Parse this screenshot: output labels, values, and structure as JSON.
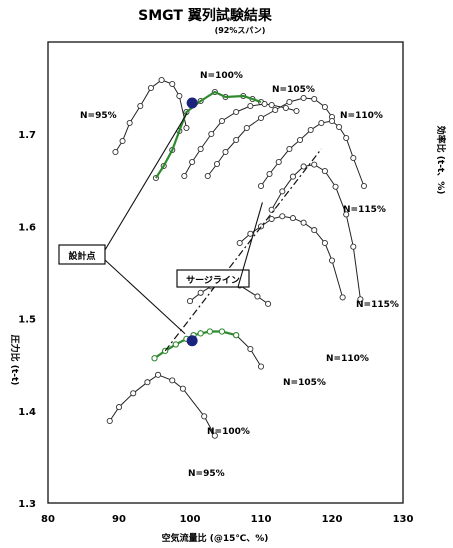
{
  "chart_data": {
    "type": "line",
    "title": "SMGT 翼列試験結果",
    "subtitle": "(92%スパン)",
    "xlabel": "空気流量比 (@15℃、%)",
    "ylabel": "圧力比 (t-t)",
    "y2label": "効率比 (t-t、%)",
    "xlim": [
      80,
      130
    ],
    "ylim": [
      1.3,
      1.8
    ],
    "xticks": [
      80,
      90,
      100,
      110,
      120,
      130
    ],
    "yticks": [
      1.3,
      1.4,
      1.5,
      1.6,
      1.7
    ],
    "xtick_labels": [
      "80",
      "90",
      "100",
      "110",
      "120",
      "130"
    ],
    "ytick_labels": [
      "1.3",
      "1.4",
      "1.5",
      "1.6",
      "1.7"
    ],
    "colors": {
      "curves": "#222222",
      "design_line": "#2d8a2d",
      "design_point": "#1a237e"
    },
    "pressure_series": [
      {
        "name": "N=95%",
        "x": [
          88.7,
          90.0,
          92.0,
          94.0,
          95.5,
          97.5,
          99.0,
          102.0,
          103.5
        ],
        "y": [
          1.389,
          1.404,
          1.419,
          1.431,
          1.439,
          1.433,
          1.424,
          1.394,
          1.373
        ]
      },
      {
        "name": "N=100%",
        "x": [
          95.0,
          96.5,
          98.0,
          99.5,
          100.5,
          101.5,
          102.8,
          104.5,
          106.5,
          108.5,
          110.0
        ],
        "y": [
          1.457,
          1.465,
          1.472,
          1.478,
          1.482,
          1.484,
          1.486,
          1.486,
          1.482,
          1.467,
          1.448
        ]
      },
      {
        "name": "N=105%",
        "x": [
          100.0,
          101.5,
          103.0,
          105.0,
          107.0,
          109.5,
          111.0
        ],
        "y": [
          1.519,
          1.528,
          1.535,
          1.54,
          1.536,
          1.524,
          1.516
        ]
      },
      {
        "name": "N=110%",
        "x": [
          107.0,
          108.5,
          110.0,
          111.5,
          113.0,
          114.5,
          116.0,
          117.5,
          119.0,
          120.0,
          121.5
        ],
        "y": [
          1.582,
          1.592,
          1.6,
          1.608,
          1.611,
          1.609,
          1.604,
          1.596,
          1.582,
          1.563,
          1.523
        ]
      },
      {
        "name": "N=115%",
        "x": [
          111.5,
          113.0,
          114.5,
          116.0,
          117.5,
          119.0,
          120.5,
          122.0,
          123.0,
          124.0
        ],
        "y": [
          1.618,
          1.638,
          1.654,
          1.665,
          1.667,
          1.66,
          1.643,
          1.613,
          1.578,
          1.521
        ]
      }
    ],
    "efficiency_series": [
      {
        "name": "N=95%",
        "x": [
          89.5,
          90.5,
          91.5,
          93.0,
          94.5,
          96.0,
          97.5,
          98.5,
          99.5
        ]
      },
      {
        "name": "N=100%",
        "x": [
          95.2,
          96.3,
          97.5,
          98.5,
          99.5,
          101.5,
          103.5,
          105.0,
          107.5,
          108.8,
          110.0
        ]
      },
      {
        "name": "N=105%",
        "x": [
          99.2,
          100.3,
          101.5,
          103.0,
          104.5,
          106.5,
          108.5,
          110.5,
          111.5,
          113.5,
          115.0
        ]
      },
      {
        "name": "N=110%",
        "x": [
          102.5,
          103.8,
          105.0,
          106.5,
          108.0,
          110.0,
          112.0,
          114.0,
          116.0,
          117.5,
          119.0,
          120.0
        ]
      },
      {
        "name": "N=115%",
        "x": [
          110.0,
          111.2,
          112.5,
          114.0,
          115.5,
          117.0,
          118.5,
          120.0,
          121.0,
          122.0,
          123.0,
          124.5
        ]
      }
    ],
    "annotations": {
      "design_point_label": "設計点",
      "surge_line_label": "サージライン",
      "upper_labels": [
        "N=95%",
        "N=100%",
        "N=105%",
        "N=110%",
        "N=115%"
      ],
      "lower_labels": [
        "N=95%",
        "N=100%",
        "N=105%",
        "N=110%",
        "N=115%"
      ]
    }
  }
}
